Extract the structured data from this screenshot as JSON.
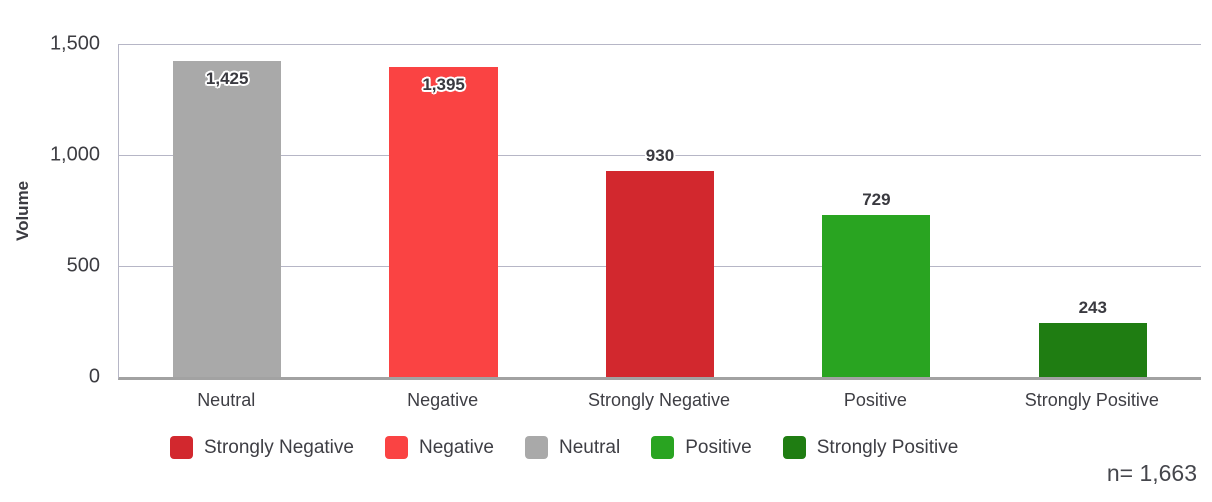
{
  "chart_data": {
    "type": "bar",
    "title": "",
    "ylabel": "Volume",
    "xlabel": "",
    "ylim": [
      0,
      1500
    ],
    "grid": true,
    "yticks": [
      "1,500",
      "1,000",
      "500",
      "0"
    ],
    "ytick_values": [
      1500,
      1000,
      500,
      0
    ],
    "categories": [
      "Neutral",
      "Negative",
      "Strongly Negative",
      "Positive",
      "Strongly Positive"
    ],
    "values": [
      1425,
      1395,
      930,
      729,
      243
    ],
    "value_labels": [
      "1,425",
      "1,395",
      "930",
      "729",
      "243"
    ],
    "bar_colors": [
      "#a9a9a9",
      "#fa4343",
      "#d2282e",
      "#29a421",
      "#1f7d12"
    ],
    "legend_position": "bottom",
    "legend": [
      {
        "label": "Strongly Negative",
        "color": "#d2282e"
      },
      {
        "label": "Negative",
        "color": "#fa4343"
      },
      {
        "label": "Neutral",
        "color": "#a9a9a9"
      },
      {
        "label": "Positive",
        "color": "#29a421"
      },
      {
        "label": "Strongly Positive",
        "color": "#1f7d12"
      }
    ],
    "sample_size_note": "n= 1,663",
    "gridline_color": "#b6b6c6",
    "axis_line_color": "#a2a2a2"
  }
}
